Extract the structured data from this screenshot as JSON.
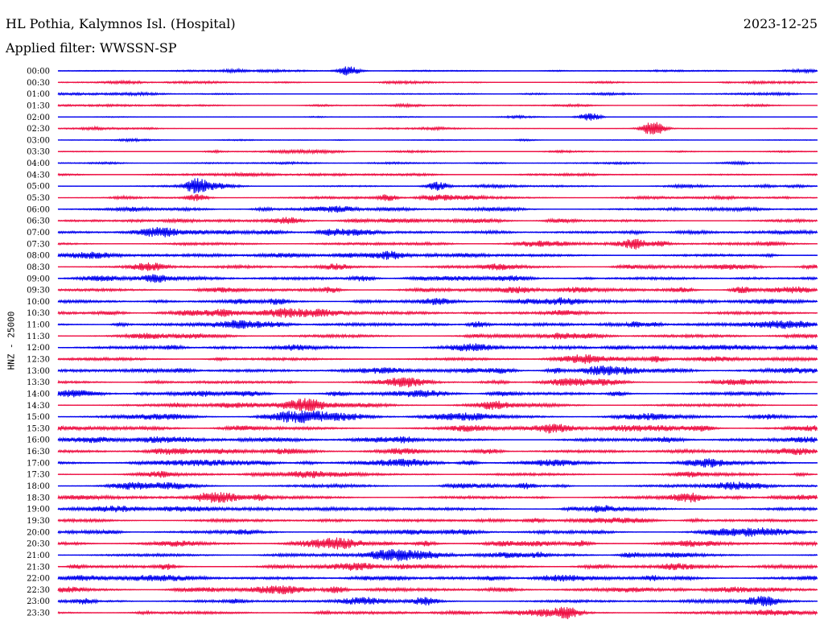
{
  "header": {
    "station": "HL Pothia, Kalymnos Isl. (Hospital)",
    "date": "2023-12-25",
    "filter": "Applied filter: WWSSN-SP"
  },
  "colors": {
    "even_trace": "#0000ee",
    "odd_trace": "#ee1144"
  },
  "chart_data": {
    "type": "line",
    "title": "HL Pothia, Kalymnos Isl. (Hospital)",
    "ylabel": "HNZ - 25000",
    "filter": "WWSSN-SP",
    "date": "2023-12-25",
    "rows": [
      "00:00",
      "00:30",
      "01:00",
      "01:30",
      "02:00",
      "02:30",
      "03:00",
      "03:30",
      "04:00",
      "04:30",
      "05:00",
      "05:30",
      "06:00",
      "06:30",
      "07:00",
      "07:30",
      "08:00",
      "08:30",
      "09:00",
      "09:30",
      "10:00",
      "10:30",
      "11:00",
      "11:30",
      "12:00",
      "12:30",
      "13:00",
      "13:30",
      "14:00",
      "14:30",
      "15:00",
      "15:30",
      "16:00",
      "16:30",
      "17:00",
      "17:30",
      "18:00",
      "18:30",
      "19:00",
      "19:30",
      "20:00",
      "20:30",
      "21:00",
      "21:30",
      "22:00",
      "22:30",
      "23:00",
      "23:30"
    ],
    "noise_level": [
      1,
      1,
      1,
      1,
      0.6,
      0.8,
      0.7,
      0.9,
      1,
      1.2,
      1.4,
      1.6,
      1.8,
      2,
      2.2,
      2.4,
      2.4,
      2.6,
      2.8,
      2.6,
      3,
      3,
      3,
      3,
      3,
      2.6,
      2.6,
      2.6,
      2.6,
      2.6,
      3,
      3,
      2.6,
      2.8,
      3,
      2.6,
      2.6,
      2.8,
      2.8,
      2.6,
      2.8,
      2.8,
      2.8,
      2.8,
      2.6,
      2.6,
      2.6,
      2.8
    ],
    "events": [
      {
        "row": "00:00",
        "minute": 11.5,
        "amplitude": 6
      },
      {
        "row": "02:00",
        "minute": 21,
        "amplitude": 5
      },
      {
        "row": "02:30",
        "minute": 23.5,
        "amplitude": 9
      },
      {
        "row": "05:00",
        "minute": 5.5,
        "amplitude": 8
      },
      {
        "row": "05:00",
        "minute": 15,
        "amplitude": 5
      },
      {
        "row": "05:30",
        "minute": 5.5,
        "amplitude": 4
      },
      {
        "row": "05:30",
        "minute": 13,
        "amplitude": 4
      },
      {
        "row": "09:30",
        "minute": 27,
        "amplitude": 4
      },
      {
        "row": "22:30",
        "minute": 11,
        "amplitude": 4
      },
      {
        "row": "23:00",
        "minute": 14.5,
        "amplitude": 5
      }
    ]
  }
}
